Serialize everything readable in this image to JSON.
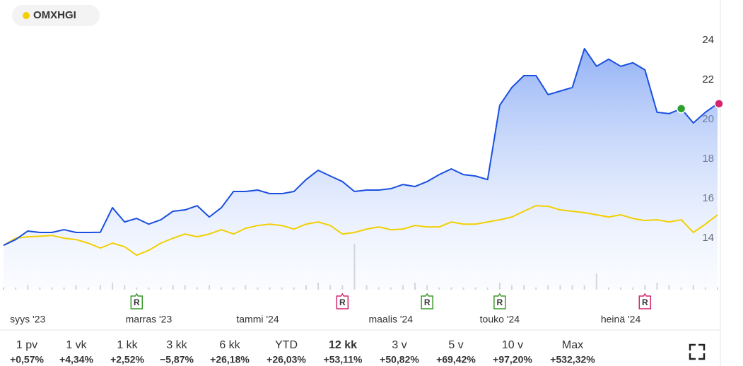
{
  "chart_data": {
    "type": "line",
    "legend": "OMXHGI",
    "categories": [
      null,
      null,
      "syys '23",
      null,
      null,
      null,
      null,
      null,
      null,
      null,
      null,
      null,
      "marras '23",
      null,
      null,
      null,
      null,
      null,
      null,
      null,
      null,
      "tammi '24",
      null,
      null,
      null,
      null,
      null,
      null,
      null,
      null,
      null,
      null,
      "maalis '24",
      null,
      null,
      null,
      null,
      null,
      null,
      null,
      null,
      "touko '24",
      null,
      null,
      null,
      null,
      null,
      null,
      null,
      null,
      null,
      "heinä '24",
      null,
      null,
      null,
      null,
      null,
      null,
      null,
      null
    ],
    "series": [
      {
        "color": "#1a4fe0",
        "values": [
          13.64,
          13.93,
          14.36,
          14.29,
          14.29,
          14.43,
          14.29,
          14.29,
          14.3,
          15.54,
          14.82,
          15.0,
          14.71,
          14.93,
          15.36,
          15.43,
          15.64,
          15.07,
          15.54,
          16.36,
          16.36,
          16.43,
          16.25,
          16.25,
          16.36,
          16.96,
          17.43,
          17.14,
          16.86,
          16.36,
          16.43,
          16.43,
          16.5,
          16.71,
          16.61,
          16.86,
          17.21,
          17.5,
          17.21,
          17.14,
          16.96,
          20.71,
          21.61,
          22.21,
          22.21,
          21.25,
          21.43,
          21.61,
          23.57,
          22.68,
          23.04,
          22.68,
          22.86,
          22.5,
          20.36,
          20.29,
          20.54,
          19.82,
          20.36,
          20.79
        ]
      },
      {
        "name": "OMXHGI",
        "color": "#f2d000",
        "values": [
          13.64,
          14.0,
          14.07,
          14.1,
          14.14,
          14.0,
          13.93,
          13.75,
          13.5,
          13.75,
          13.57,
          13.14,
          13.39,
          13.75,
          14.0,
          14.21,
          14.07,
          14.21,
          14.43,
          14.21,
          14.5,
          14.64,
          14.71,
          14.64,
          14.46,
          14.71,
          14.82,
          14.64,
          14.21,
          14.29,
          14.46,
          14.57,
          14.43,
          14.46,
          14.64,
          14.57,
          14.57,
          14.82,
          14.71,
          14.71,
          14.82,
          14.93,
          15.07,
          15.36,
          15.64,
          15.61,
          15.43,
          15.36,
          15.29,
          15.18,
          15.07,
          15.18,
          15.0,
          14.89,
          14.93,
          14.82,
          14.93,
          14.29,
          14.71,
          15.18
        ]
      }
    ],
    "highlight": {
      "index": 56,
      "color": "#2ca02c"
    },
    "last_color": "#d6246e",
    "volume": [
      1,
      1,
      2,
      1,
      1,
      1,
      2,
      1,
      2,
      3,
      2,
      1,
      1,
      1,
      2,
      2,
      1,
      2,
      1,
      1,
      2,
      1,
      1,
      1,
      1,
      2,
      3,
      2,
      2,
      20,
      2,
      1,
      1,
      2,
      3,
      2,
      1,
      1,
      1,
      1,
      1,
      3,
      2,
      2,
      1,
      2,
      2,
      2,
      2,
      7,
      1,
      1,
      1,
      2,
      3,
      2,
      1,
      2,
      1,
      1
    ],
    "ylim": [
      11.4,
      24.6
    ],
    "yticks": [
      14,
      16,
      18,
      20,
      22,
      24
    ],
    "grid": false,
    "report_markers": [
      {
        "label": "R",
        "index": 11,
        "color": "#3a9a2a"
      },
      {
        "label": "R",
        "index": 28,
        "color": "#d6246e"
      },
      {
        "label": "R",
        "index": 35,
        "color": "#3a9a2a"
      },
      {
        "label": "R",
        "index": 41,
        "color": "#3a9a2a"
      },
      {
        "label": "R",
        "index": 53,
        "color": "#d6246e"
      }
    ],
    "periods": [
      {
        "label": "1 pv",
        "change": "+0,57%",
        "color": "#3a8a1e"
      },
      {
        "label": "1 vk",
        "change": "+4,34%",
        "color": "#3a8a1e"
      },
      {
        "label": "1 kk",
        "change": "+2,52%",
        "color": "#3a8a1e"
      },
      {
        "label": "3 kk",
        "change": "−5,87%",
        "color": "#d6246e"
      },
      {
        "label": "6 kk",
        "change": "+26,18%",
        "color": "#3a8a1e"
      },
      {
        "label": "YTD",
        "change": "+26,03%",
        "color": "#3a8a1e"
      },
      {
        "label": "12 kk",
        "change": "+53,11%",
        "color": "#3a8a1e"
      },
      {
        "label": "3 v",
        "change": "+50,82%",
        "color": "#3a8a1e"
      },
      {
        "label": "5 v",
        "change": "+69,42%",
        "color": "#3a8a1e"
      },
      {
        "label": "10 v",
        "change": "+97,20%",
        "color": "#3a8a1e"
      },
      {
        "label": "Max",
        "change": "+532,32%",
        "color": "#3a8a1e"
      }
    ],
    "selected_period": 6
  }
}
